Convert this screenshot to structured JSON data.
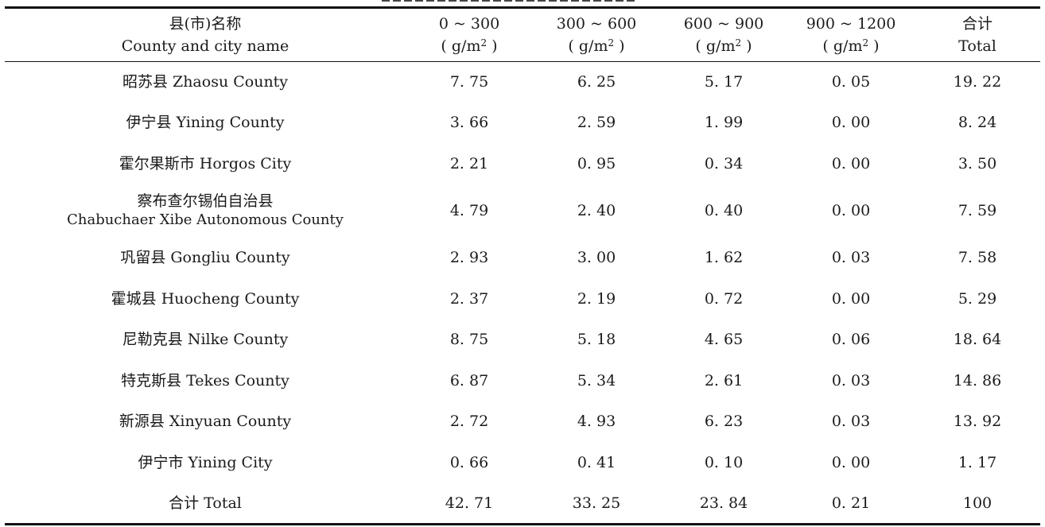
{
  "table": {
    "header": {
      "name_zh": "县(市)名称",
      "name_en": "County and city name",
      "columns": [
        {
          "range": "0 ~ 300",
          "unit_open": "( g/m",
          "unit_sup": "2",
          "unit_close": " )"
        },
        {
          "range": "300 ~ 600",
          "unit_open": "( g/m",
          "unit_sup": "2",
          "unit_close": " )"
        },
        {
          "range": "600 ~ 900",
          "unit_open": "( g/m",
          "unit_sup": "2",
          "unit_close": " )"
        },
        {
          "range": "900 ~ 1200",
          "unit_open": "( g/m",
          "unit_sup": "2",
          "unit_close": " )"
        }
      ],
      "total_zh": "合计",
      "total_en": "Total"
    },
    "rows": [
      {
        "name": "昭苏县 Zhaosu County",
        "values": [
          "7. 75",
          "6. 25",
          "5. 17",
          "0. 05"
        ],
        "total": "19. 22"
      },
      {
        "name": "伊宁县 Yining County",
        "values": [
          "3. 66",
          "2. 59",
          "1. 99",
          "0. 00"
        ],
        "total": "8. 24"
      },
      {
        "name": "霍尔果斯市 Horgos City",
        "values": [
          "2. 21",
          "0. 95",
          "0. 34",
          "0. 00"
        ],
        "total": "3. 50"
      },
      {
        "name_zh": "察布查尔锡伯自治县",
        "name_en": "Chabuchaer Xibe Autonomous County",
        "values": [
          "4. 79",
          "2. 40",
          "0. 40",
          "0. 00"
        ],
        "total": "7. 59"
      },
      {
        "name": "巩留县 Gongliu County",
        "values": [
          "2. 93",
          "3. 00",
          "1. 62",
          "0. 03"
        ],
        "total": "7. 58"
      },
      {
        "name": "霍城县 Huocheng County",
        "values": [
          "2. 37",
          "2. 19",
          "0. 72",
          "0. 00"
        ],
        "total": "5. 29"
      },
      {
        "name": "尼勒克县 Nilke County",
        "values": [
          "8. 75",
          "5. 18",
          "4. 65",
          "0. 06"
        ],
        "total": "18. 64"
      },
      {
        "name": "特克斯县 Tekes County",
        "values": [
          "6. 87",
          "5. 34",
          "2. 61",
          "0. 03"
        ],
        "total": "14. 86"
      },
      {
        "name": "新源县 Xinyuan County",
        "values": [
          "2. 72",
          "4. 93",
          "6. 23",
          "0. 03"
        ],
        "total": "13. 92"
      },
      {
        "name": "伊宁市 Yining City",
        "values": [
          "0. 66",
          "0. 41",
          "0. 10",
          "0. 00"
        ],
        "total": "1. 17"
      },
      {
        "name": "合计 Total",
        "values": [
          "42. 71",
          "33. 25",
          "23. 84",
          "0. 21"
        ],
        "total": "100"
      }
    ]
  }
}
